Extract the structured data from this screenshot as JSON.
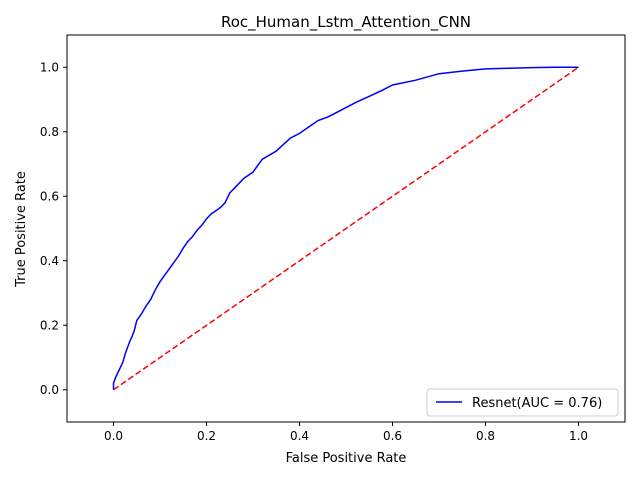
{
  "chart_data": {
    "type": "line",
    "title": "Roc_Human_Lstm_Attention_CNN",
    "xlabel": "False Positive Rate",
    "ylabel": "True Positive Rate",
    "xlim": [
      -0.1,
      1.1
    ],
    "ylim": [
      -0.1,
      1.1
    ],
    "xticks": [
      0.0,
      0.2,
      0.4,
      0.6,
      0.8,
      1.0
    ],
    "yticks": [
      0.0,
      0.2,
      0.4,
      0.6,
      0.8,
      1.0
    ],
    "xtick_labels": [
      "0.0",
      "0.2",
      "0.4",
      "0.6",
      "0.8",
      "1.0"
    ],
    "ytick_labels": [
      "0.0",
      "0.2",
      "0.4",
      "0.6",
      "0.8",
      "1.0"
    ],
    "grid": false,
    "legend_position": "lower-right",
    "series": [
      {
        "name": "Resnet(AUC = 0.76)",
        "color": "#0000ff",
        "style": "solid",
        "x": [
          0.0,
          0.0,
          0.005,
          0.01,
          0.015,
          0.02,
          0.025,
          0.03,
          0.035,
          0.04,
          0.045,
          0.05,
          0.055,
          0.06,
          0.07,
          0.08,
          0.09,
          0.1,
          0.11,
          0.12,
          0.13,
          0.14,
          0.15,
          0.16,
          0.17,
          0.18,
          0.19,
          0.2,
          0.21,
          0.22,
          0.23,
          0.24,
          0.25,
          0.26,
          0.28,
          0.3,
          0.32,
          0.35,
          0.38,
          0.4,
          0.42,
          0.44,
          0.46,
          0.48,
          0.5,
          0.52,
          0.55,
          0.58,
          0.6,
          0.65,
          0.7,
          0.75,
          0.8,
          0.85,
          0.9,
          0.95,
          1.0
        ],
        "y": [
          0.0,
          0.02,
          0.04,
          0.055,
          0.07,
          0.085,
          0.11,
          0.13,
          0.15,
          0.165,
          0.185,
          0.215,
          0.225,
          0.235,
          0.26,
          0.28,
          0.31,
          0.335,
          0.355,
          0.375,
          0.395,
          0.415,
          0.44,
          0.46,
          0.475,
          0.495,
          0.51,
          0.53,
          0.545,
          0.555,
          0.565,
          0.58,
          0.61,
          0.625,
          0.655,
          0.675,
          0.715,
          0.74,
          0.78,
          0.795,
          0.815,
          0.835,
          0.845,
          0.86,
          0.875,
          0.89,
          0.91,
          0.93,
          0.945,
          0.96,
          0.98,
          0.988,
          0.995,
          0.997,
          0.999,
          1.0,
          1.0
        ]
      },
      {
        "name": "",
        "color": "#ff0000",
        "style": "dashed",
        "x": [
          0.0,
          1.0
        ],
        "y": [
          0.0,
          1.0
        ]
      }
    ]
  }
}
